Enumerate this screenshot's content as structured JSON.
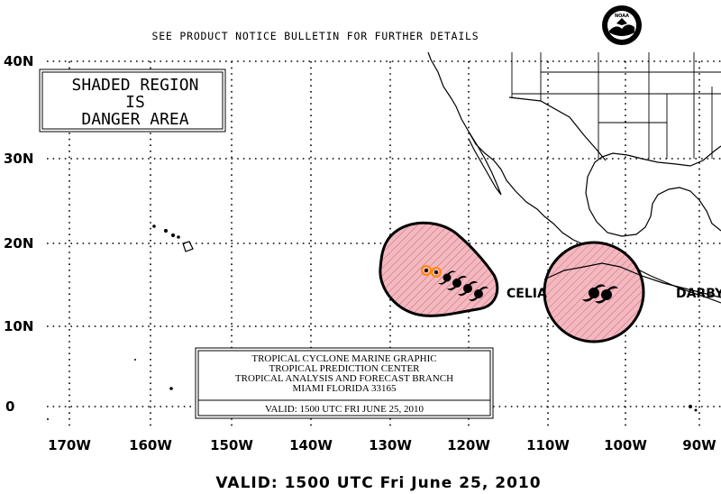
{
  "header": {
    "notice": "SEE PRODUCT NOTICE BULLETIN FOR FURTHER DETAILS",
    "logo_text": "NOAA"
  },
  "legend_box": {
    "lines": [
      "SHADED REGION",
      "IS",
      "DANGER AREA"
    ]
  },
  "latitude_labels": [
    "40N",
    "30N",
    "20N",
    "10N",
    "0"
  ],
  "longitude_labels": [
    "170W",
    "160W",
    "150W",
    "140W",
    "130W",
    "120W",
    "110W",
    "100W",
    "90W"
  ],
  "storms": [
    {
      "name": "CELIA",
      "lat": 13.5,
      "lon": -117.5
    },
    {
      "name": "DARBY",
      "lat": 13.5,
      "lon": -103.5
    }
  ],
  "info_box": {
    "lines": [
      "TROPICAL CYCLONE MARINE GRAPHIC",
      "TROPICAL PREDICTION CENTER",
      "TROPICAL ANALYSIS AND FORECAST BRANCH",
      "MIAMI FLORIDA   33165"
    ],
    "valid": "VALID:  1500 UTC FRI JUNE 25, 2010"
  },
  "footer": {
    "valid": "VALID: 1500 UTC Fri June 25, 2010"
  },
  "colors": {
    "danger_fill": "#f4b8c0",
    "outline": "#000000",
    "grid": "#000000",
    "forecast_dot": "#ff8a00"
  }
}
